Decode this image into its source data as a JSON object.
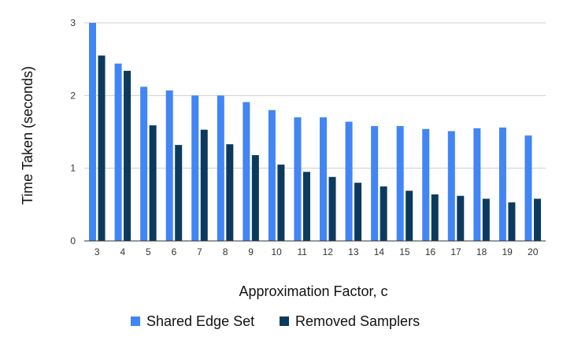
{
  "chart_data": {
    "type": "bar",
    "xlabel": "Approximation Factor, c",
    "ylabel": "Time Taken (seconds)",
    "categories": [
      "3",
      "4",
      "5",
      "6",
      "7",
      "8",
      "9",
      "10",
      "11",
      "12",
      "13",
      "14",
      "15",
      "16",
      "17",
      "18",
      "19",
      "20"
    ],
    "ylim": [
      0,
      3
    ],
    "yticks": [
      0,
      1,
      2,
      3
    ],
    "grid": true,
    "legend_position": "bottom",
    "series": [
      {
        "name": "Shared Edge Set",
        "color": "#4285f4",
        "values": [
          3.0,
          2.44,
          2.12,
          2.07,
          2.0,
          2.0,
          1.91,
          1.8,
          1.7,
          1.7,
          1.64,
          1.58,
          1.58,
          1.54,
          1.51,
          1.55,
          1.56,
          1.45
        ]
      },
      {
        "name": "Removed Samplers",
        "color": "#0b3a5e",
        "values": [
          2.55,
          2.34,
          1.59,
          1.32,
          1.53,
          1.33,
          1.18,
          1.05,
          0.95,
          0.88,
          0.8,
          0.75,
          0.69,
          0.64,
          0.62,
          0.58,
          0.53,
          0.58
        ]
      }
    ]
  }
}
